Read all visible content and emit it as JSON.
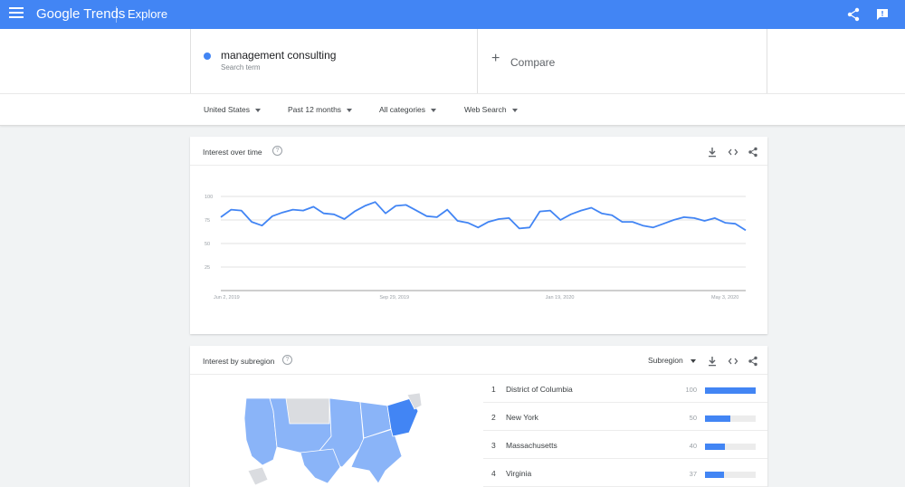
{
  "header": {
    "logo_google": "Google",
    "logo_trends": "Trends",
    "section": "Explore"
  },
  "search": {
    "term": "management consulting",
    "term_type": "Search term",
    "compare_label": "Compare"
  },
  "filters": {
    "region": "United States",
    "period": "Past 12 months",
    "category": "All categories",
    "search_type": "Web Search"
  },
  "interest_over_time": {
    "title": "Interest over time",
    "help": "?"
  },
  "chart_data": {
    "type": "line",
    "title": "Interest over time",
    "ylim": [
      0,
      100
    ],
    "yticks": [
      "100",
      "75",
      "50",
      "25"
    ],
    "xticks": [
      "Jun 2, 2019",
      "Sep 29, 2019",
      "Jan 19, 2020",
      "May 3, 2020"
    ],
    "grid": true,
    "series": [
      {
        "name": "management consulting",
        "color": "#4285f4",
        "values": [
          78,
          86,
          85,
          73,
          69,
          79,
          83,
          86,
          85,
          89,
          82,
          81,
          76,
          84,
          90,
          94,
          82,
          90,
          91,
          85,
          79,
          78,
          86,
          74,
          72,
          67,
          73,
          76,
          77,
          66,
          67,
          84,
          85,
          75,
          81,
          85,
          88,
          82,
          80,
          73,
          73,
          69,
          67,
          71,
          75,
          78,
          77,
          74,
          77,
          72,
          71,
          64
        ]
      }
    ]
  },
  "interest_by_subregion": {
    "title": "Interest by subregion",
    "help": "?",
    "select": "Subregion",
    "rows": [
      {
        "rank": "1",
        "name": "District of Columbia",
        "value": "100",
        "fill": 100
      },
      {
        "rank": "2",
        "name": "New York",
        "value": "50",
        "fill": 50
      },
      {
        "rank": "3",
        "name": "Massachusetts",
        "value": "40",
        "fill": 40
      },
      {
        "rank": "4",
        "name": "Virginia",
        "value": "37",
        "fill": 37
      }
    ]
  },
  "colors": {
    "topbar": "#4285f4",
    "line": "#4285f4",
    "map_fill": "#8ab4f8",
    "map_high": "#4285f4",
    "map_none": "#dadce0"
  }
}
